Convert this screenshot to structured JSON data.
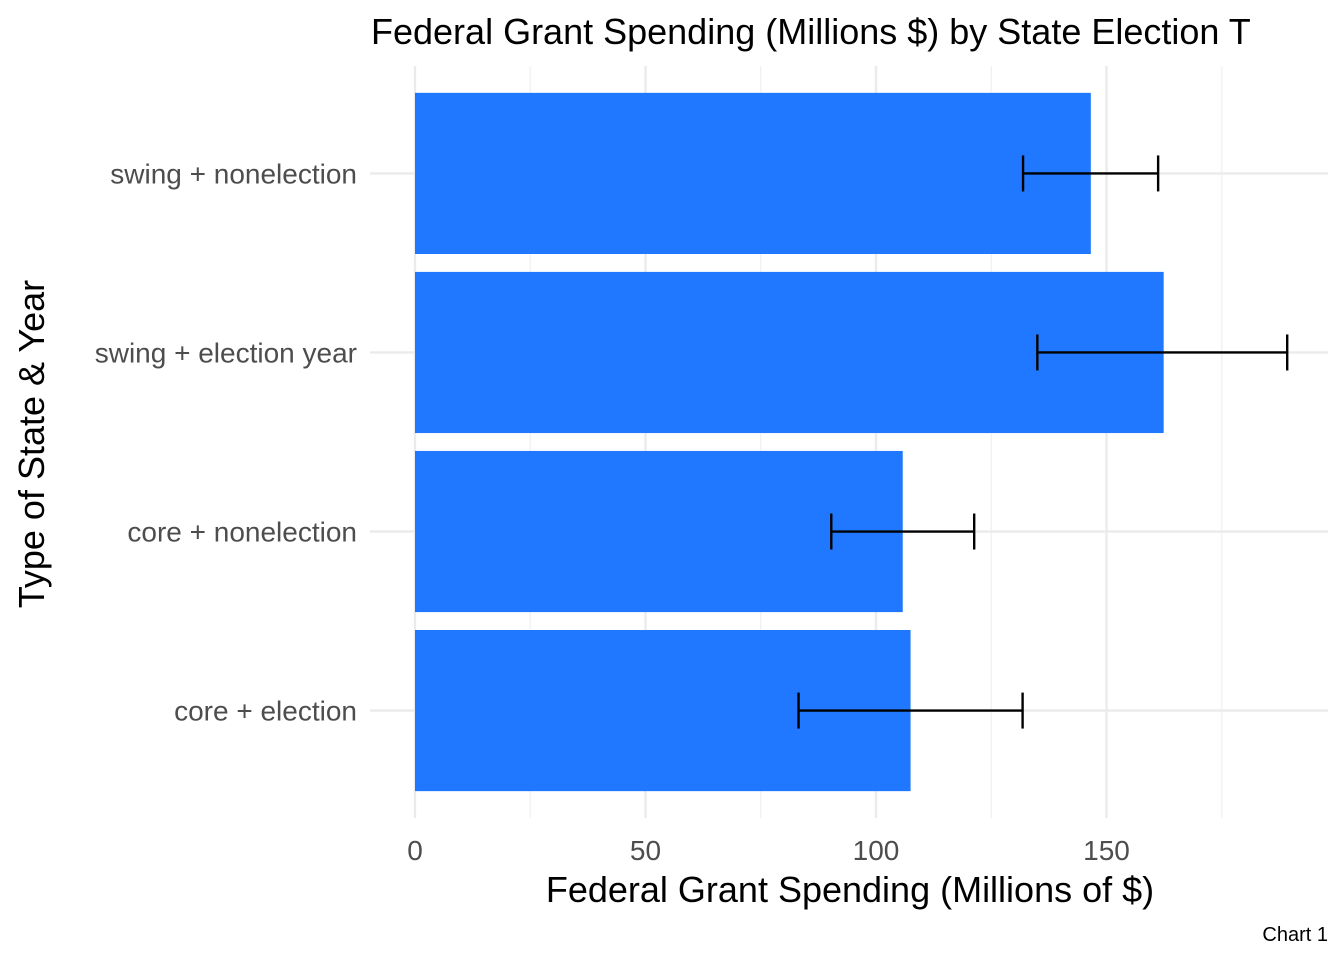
{
  "chart_data": {
    "type": "bar",
    "orientation": "horizontal",
    "title": "Federal Grant Spending (Millions $) by State Election T",
    "xlabel": "Federal Grant Spending (Millions of $)",
    "ylabel": "Type of State & Year",
    "caption": "Chart 1",
    "categories": [
      "core + election",
      "core + nonelection",
      "swing + election year",
      "swing + nonelection"
    ],
    "values": [
      107.5,
      105.8,
      162.4,
      146.6
    ],
    "error_low": [
      83.2,
      90.3,
      135.0,
      131.9
    ],
    "error_high": [
      131.8,
      121.3,
      189.2,
      161.2
    ],
    "xlim": [
      0,
      198
    ],
    "xticks": [
      0,
      50,
      100,
      150
    ],
    "xtick_labels": [
      "0",
      "50",
      "100",
      "150"
    ],
    "bar_color": "#1f78ff",
    "errorbar_color": "#000000",
    "grid": true,
    "legend": "none"
  }
}
